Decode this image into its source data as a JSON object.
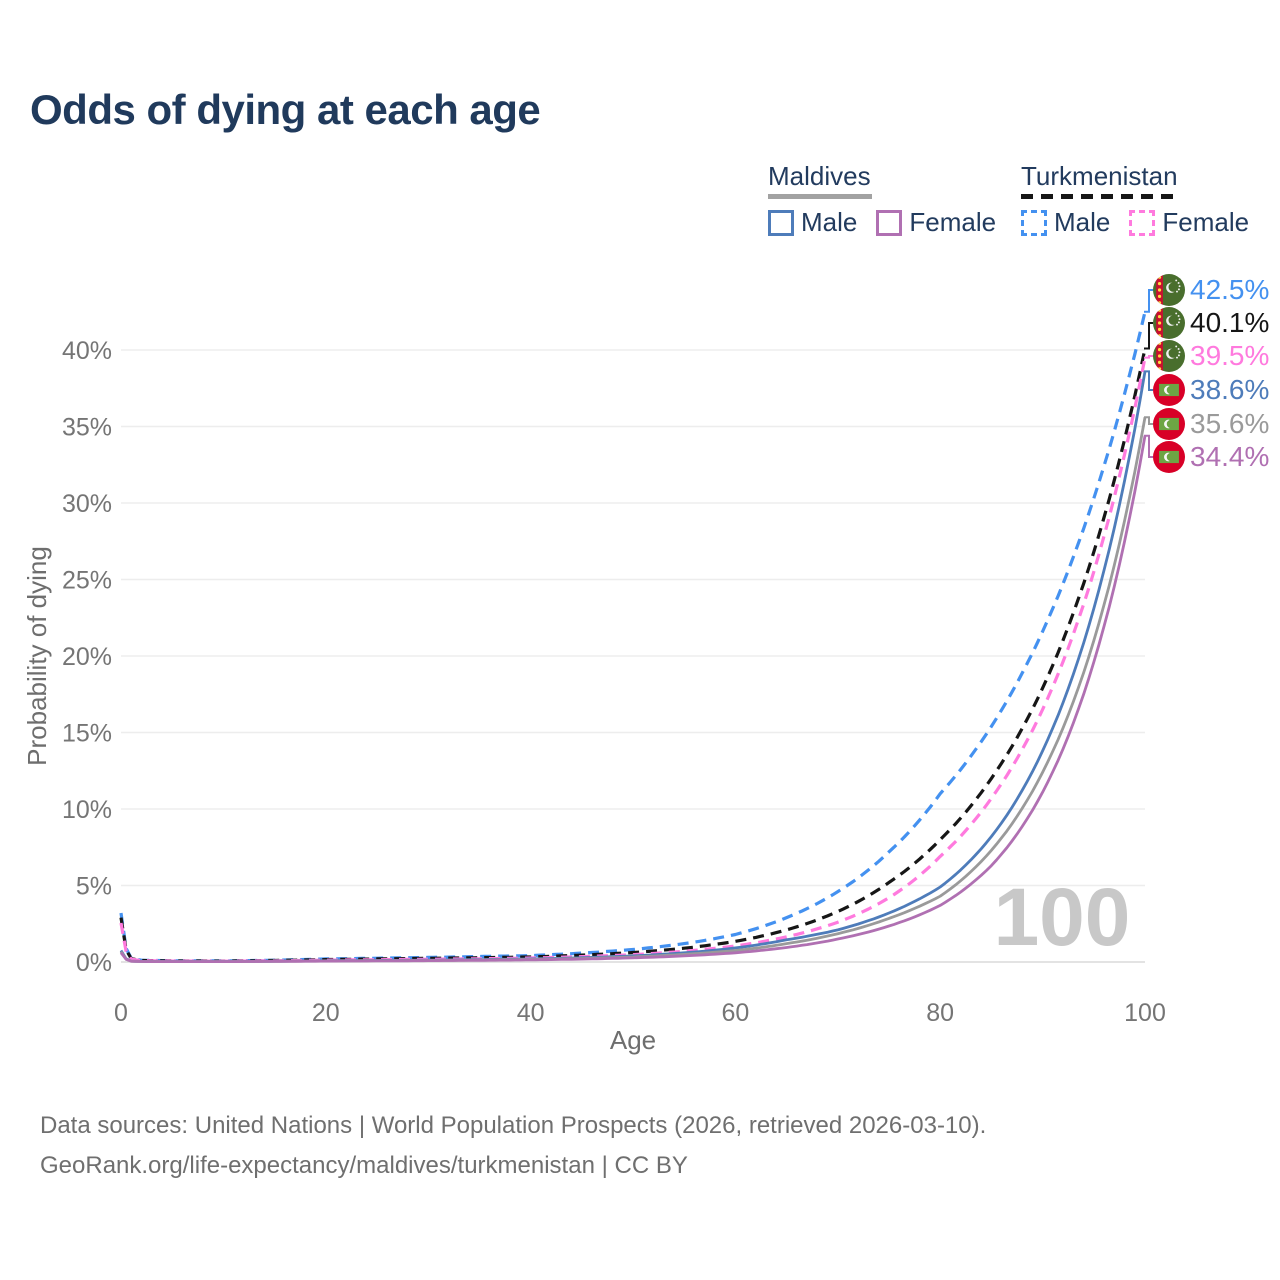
{
  "title": "Odds of dying at each age",
  "legend": {
    "groups": [
      {
        "country": "Maldives",
        "line_style": "solid",
        "line_color": "#a2a2a2",
        "items": [
          {
            "label": "Male",
            "style": "solid",
            "color": "#4e7cba"
          },
          {
            "label": "Female",
            "style": "solid",
            "color": "#b070b2"
          }
        ]
      },
      {
        "country": "Turkmenistan",
        "line_style": "dashed",
        "line_color": "#161616",
        "items": [
          {
            "label": "Male",
            "style": "dashed",
            "color": "#4491f0"
          },
          {
            "label": "Female",
            "style": "dashed",
            "color": "#ff7ade"
          }
        ]
      }
    ]
  },
  "watermark_age": "100",
  "footer": {
    "line1": "Data sources: United Nations | World Population Prospects (2026, retrieved 2026-03-10).",
    "line2": "GeoRank.org/life-expectancy/maldives/turkmenistan | CC BY"
  },
  "chart_data": {
    "type": "line",
    "title": "Odds of dying at each age",
    "xlabel": "Age",
    "ylabel": "Probability of dying",
    "xlim": [
      0,
      100
    ],
    "ylim_pct": [
      0,
      44
    ],
    "xticks": [
      0,
      20,
      40,
      60,
      80,
      100
    ],
    "yticks_pct": [
      0,
      5,
      10,
      15,
      20,
      25,
      30,
      35,
      40
    ],
    "grid": true,
    "legend_position": "top-right",
    "x_ages": [
      0,
      1,
      2,
      5,
      10,
      15,
      20,
      25,
      30,
      35,
      40,
      45,
      50,
      55,
      60,
      65,
      70,
      75,
      80,
      85,
      90,
      95,
      100
    ],
    "series": [
      {
        "name": "Turkmenistan Male",
        "country": "Turkmenistan",
        "sex": "Male",
        "style": "dashed",
        "color": "#4491f0",
        "flag": "turkmenistan",
        "end_label": "42.5%",
        "end_value_pct": 42.5,
        "values_pct": [
          3.2,
          0.25,
          0.12,
          0.08,
          0.07,
          0.12,
          0.2,
          0.25,
          0.3,
          0.36,
          0.42,
          0.58,
          0.82,
          1.2,
          1.8,
          2.9,
          4.6,
          7.2,
          11.0,
          15.4,
          21.6,
          30.3,
          42.5
        ]
      },
      {
        "name": "Turkmenistan Both sexes",
        "country": "Turkmenistan",
        "sex": "Both",
        "style": "dashed",
        "color": "#161616",
        "flag": "turkmenistan",
        "end_label": "40.1%",
        "end_value_pct": 40.1,
        "values_pct": [
          2.9,
          0.22,
          0.1,
          0.07,
          0.06,
          0.1,
          0.16,
          0.2,
          0.24,
          0.28,
          0.33,
          0.45,
          0.62,
          0.9,
          1.35,
          2.1,
          3.3,
          5.2,
          8.0,
          12.0,
          17.9,
          26.8,
          40.1
        ]
      },
      {
        "name": "Turkmenistan Female",
        "country": "Turkmenistan",
        "sex": "Female",
        "style": "dashed",
        "color": "#ff7ade",
        "flag": "turkmenistan",
        "end_label": "39.5%",
        "end_value_pct": 39.5,
        "values_pct": [
          2.55,
          0.19,
          0.09,
          0.06,
          0.05,
          0.08,
          0.12,
          0.15,
          0.18,
          0.21,
          0.26,
          0.35,
          0.48,
          0.7,
          1.05,
          1.65,
          2.6,
          4.2,
          6.9,
          10.7,
          16.5,
          25.5,
          39.5
        ]
      },
      {
        "name": "Maldives Male",
        "country": "Maldives",
        "sex": "Male",
        "style": "solid",
        "color": "#4e7cba",
        "flag": "maldives",
        "end_label": "38.6%",
        "end_value_pct": 38.6,
        "values_pct": [
          0.75,
          0.06,
          0.04,
          0.03,
          0.03,
          0.05,
          0.08,
          0.1,
          0.12,
          0.16,
          0.2,
          0.28,
          0.4,
          0.6,
          0.92,
          1.45,
          2.1,
          3.2,
          4.9,
          8.2,
          13.8,
          23.1,
          38.6
        ]
      },
      {
        "name": "Maldives Both sexes",
        "country": "Maldives",
        "sex": "Both",
        "style": "solid",
        "color": "#9a9a9a",
        "flag": "maldives",
        "end_label": "35.6%",
        "end_value_pct": 35.6,
        "values_pct": [
          0.68,
          0.05,
          0.035,
          0.027,
          0.027,
          0.045,
          0.07,
          0.09,
          0.1,
          0.13,
          0.17,
          0.23,
          0.33,
          0.5,
          0.75,
          1.2,
          1.85,
          2.85,
          4.3,
          7.3,
          12.4,
          21.0,
          35.6
        ]
      },
      {
        "name": "Maldives Female",
        "country": "Maldives",
        "sex": "Female",
        "style": "solid",
        "color": "#b070b2",
        "flag": "maldives",
        "end_label": "34.4%",
        "end_value_pct": 34.4,
        "values_pct": [
          0.6,
          0.05,
          0.03,
          0.025,
          0.025,
          0.04,
          0.06,
          0.07,
          0.09,
          0.11,
          0.14,
          0.19,
          0.27,
          0.4,
          0.6,
          0.95,
          1.5,
          2.35,
          3.7,
          6.3,
          11.1,
          19.6,
          34.4
        ]
      }
    ]
  }
}
